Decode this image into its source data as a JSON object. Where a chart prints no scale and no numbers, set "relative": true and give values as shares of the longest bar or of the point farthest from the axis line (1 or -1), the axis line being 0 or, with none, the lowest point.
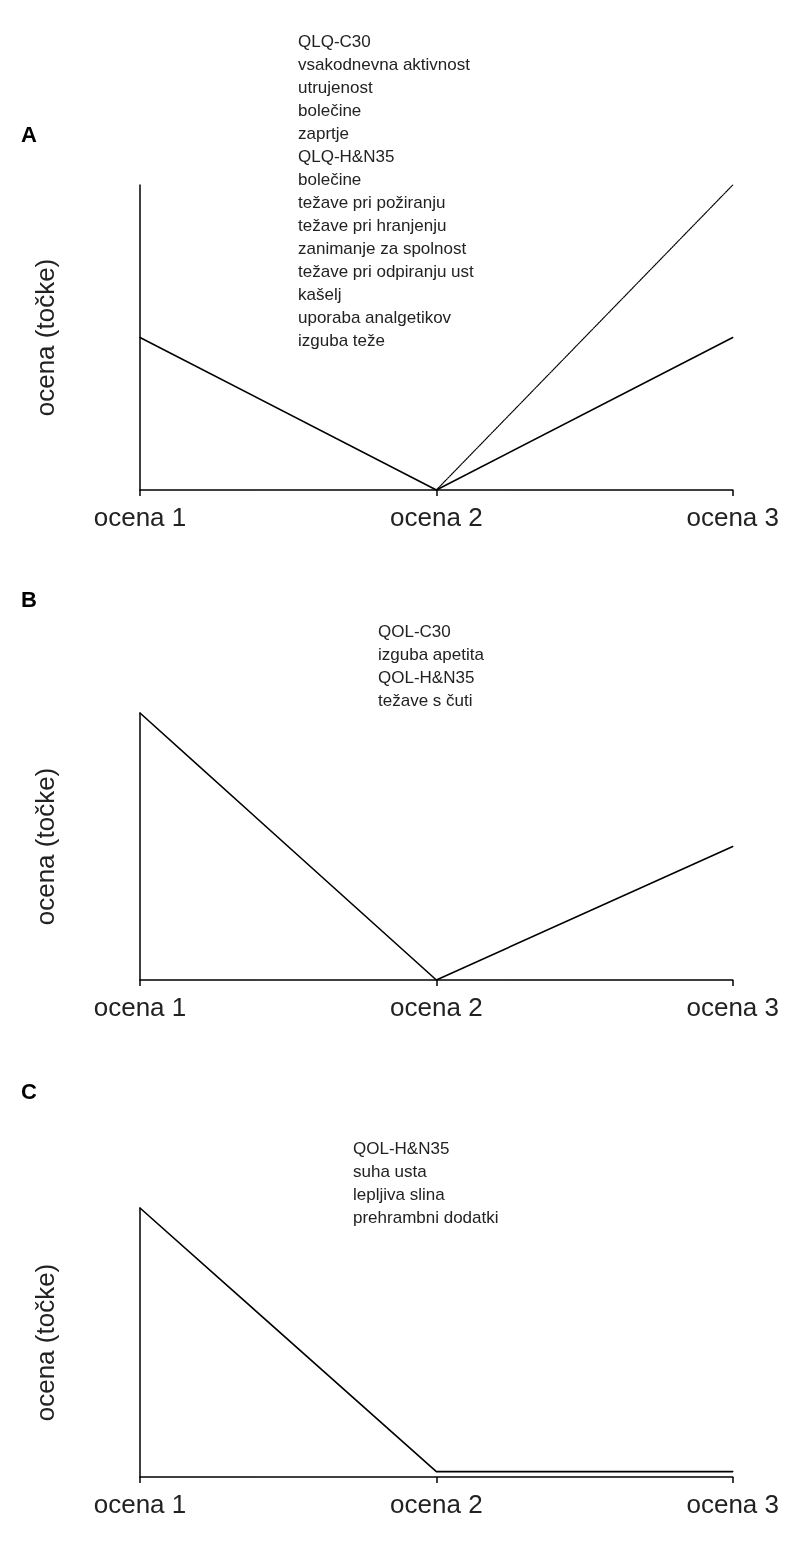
{
  "chart_data": [
    {
      "type": "line",
      "title": "A",
      "ylabel": "ocena (točke)",
      "categories": [
        "ocena 1",
        "ocena 2",
        "ocena 3"
      ],
      "relative": true,
      "marker": "none",
      "grid": false,
      "series": [
        {
          "color": "#000000",
          "values": [
            0.5,
            0,
            0.5
          ],
          "line_style": "solid"
        },
        {
          "color": "#000000",
          "values": [
            null,
            0,
            1
          ],
          "line_style": "dotted"
        }
      ],
      "annotations": [
        "QLQ-C30",
        "vsakodnevna aktivnost",
        "utrujenost",
        "bolečine",
        "zaprtje",
        "QLQ-H&N35",
        "bolečine",
        "težave pri požiranju",
        "težave pri hranjenju",
        "zanimanje za spolnost",
        "težave pri odpiranju ust",
        "kašelj",
        "uporaba analgetikov",
        "izguba teže"
      ]
    },
    {
      "type": "line",
      "title": "B",
      "ylabel": "ocena (točke)",
      "categories": [
        "ocena 1",
        "ocena 2",
        "ocena 3"
      ],
      "relative": true,
      "marker": "none",
      "grid": false,
      "series": [
        {
          "color": "#000000",
          "values": [
            1,
            0,
            0.5
          ],
          "line_style": "solid"
        }
      ],
      "annotations": [
        "QOL-C30",
        "izguba apetita",
        "QOL-H&N35",
        "težave s čuti"
      ]
    },
    {
      "type": "line",
      "title": "C",
      "ylabel": "ocena (točke)",
      "categories": [
        "ocena 1",
        "ocena 2",
        "ocena 3"
      ],
      "relative": true,
      "marker": "none",
      "grid": false,
      "series": [
        {
          "color": "#000000",
          "values": [
            1,
            0.02,
            0.02
          ],
          "line_style": "solid"
        }
      ],
      "annotations": [
        "QOL-H&N35",
        "suha usta",
        "lepljiva slina",
        "prehrambni dodatki"
      ]
    }
  ]
}
